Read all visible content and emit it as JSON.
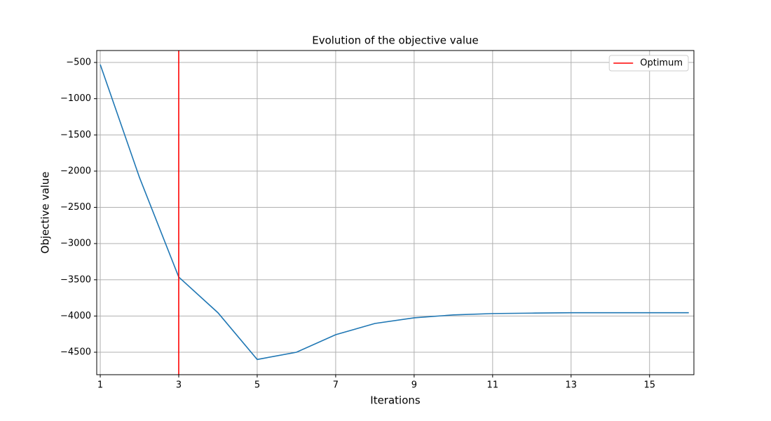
{
  "chart_data": {
    "type": "line",
    "title": "Evolution of the objective value",
    "x_label": "Iterations",
    "y_label": "Objective value",
    "x": [
      1,
      2,
      3,
      4,
      5,
      6,
      7,
      8,
      9,
      10,
      11,
      12,
      13,
      14,
      15,
      16
    ],
    "series": [
      {
        "color": "#1f77b4",
        "values": [
          -529,
          -2088,
          -3462,
          -3955,
          -4600,
          -4500,
          -4258,
          -4103,
          -4025,
          -3985,
          -3966,
          -3960,
          -3955,
          -3955,
          -3955,
          -3955
        ]
      }
    ],
    "vlines": [
      {
        "name": "Optimum",
        "color": "#ff0000",
        "x": 3
      }
    ],
    "xlim": [
      0.91,
      16.13
    ],
    "xticks": [
      1,
      3,
      5,
      7,
      9,
      11,
      13,
      15
    ],
    "ylim": [
      -4810,
      -335
    ],
    "yticks": [
      {
        "value": -500,
        "label": "−500"
      },
      {
        "value": -1000,
        "label": "−1000"
      },
      {
        "value": -1500,
        "label": "−1500"
      },
      {
        "value": -2000,
        "label": "−2000"
      },
      {
        "value": -2500,
        "label": "−2500"
      },
      {
        "value": -3000,
        "label": "−3000"
      },
      {
        "value": -3500,
        "label": "−3500"
      },
      {
        "value": -4000,
        "label": "−4000"
      },
      {
        "value": -4500,
        "label": "−4500"
      }
    ],
    "grid": true,
    "legend": "upper right"
  }
}
